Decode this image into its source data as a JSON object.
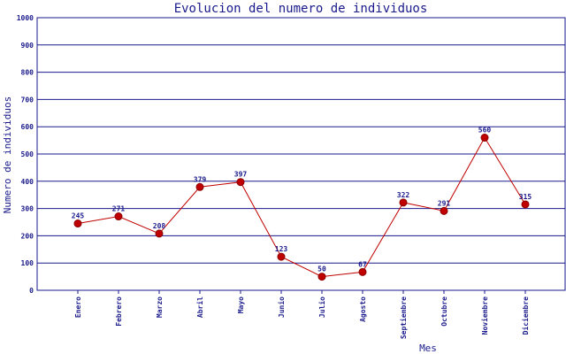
{
  "chart_data": {
    "type": "line",
    "title": "Evolucion del numero de individuos",
    "xlabel": "Mes",
    "ylabel": "Numero de individuos",
    "categories": [
      "Enero",
      "Febrero",
      "Marzo",
      "Abril",
      "Mayo",
      "Junio",
      "Julio",
      "Agosto",
      "Septiembre",
      "Octubre",
      "Noviembre",
      "Diciembre"
    ],
    "values": [
      245,
      271,
      208,
      379,
      397,
      123,
      50,
      67,
      322,
      291,
      560,
      315
    ],
    "ylim": [
      0,
      1000
    ],
    "yticks": [
      "0",
      "100",
      "200",
      "300",
      "400",
      "500",
      "600",
      "700",
      "800",
      "900",
      "1000"
    ],
    "grid": true,
    "colors": {
      "line": "#c00000",
      "point": "#c00000",
      "text": "#1a1a8c",
      "grid": "#1a1a8c"
    }
  }
}
